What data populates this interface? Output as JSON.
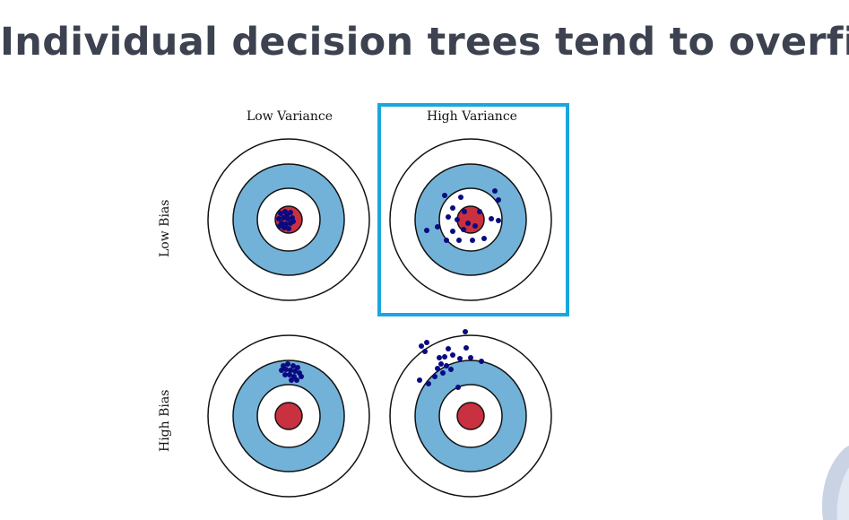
{
  "slide": {
    "title": "Individual decision trees tend to overfit"
  },
  "diagram": {
    "column_labels": [
      "Low Variance",
      "High Variance"
    ],
    "row_labels": [
      "Low Bias",
      "High Bias"
    ],
    "highlighted_panel": "Low Bias / High Variance",
    "colors": {
      "ring_outer": "#ffffff",
      "ring_middle": "#72b2d8",
      "ring_inner": "#ffffff",
      "bullseye": "#c93040",
      "dots": "#0a0a80",
      "highlight": "#1aa7dc",
      "title": "#3d4250"
    }
  }
}
